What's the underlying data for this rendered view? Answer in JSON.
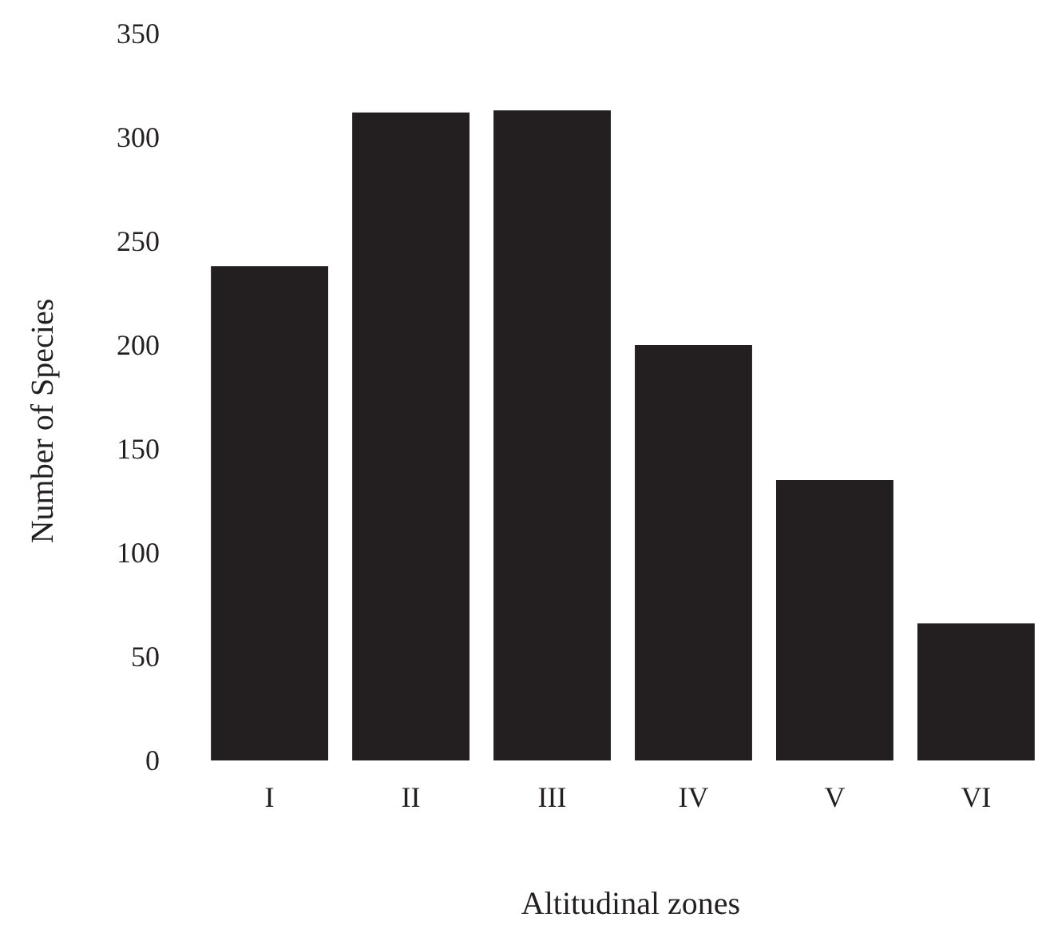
{
  "chart_data": {
    "type": "bar",
    "xlabel": "Altitudinal zones",
    "ylabel": "Number of Species",
    "categories": [
      "I",
      "II",
      "III",
      "IV",
      "V",
      "VI"
    ],
    "values": [
      238,
      312,
      313,
      200,
      135,
      66
    ],
    "color": "#231f20",
    "ylim": [
      0,
      350
    ],
    "yticks": [
      0,
      50,
      100,
      150,
      200,
      250,
      300,
      350
    ],
    "grid": false
  }
}
